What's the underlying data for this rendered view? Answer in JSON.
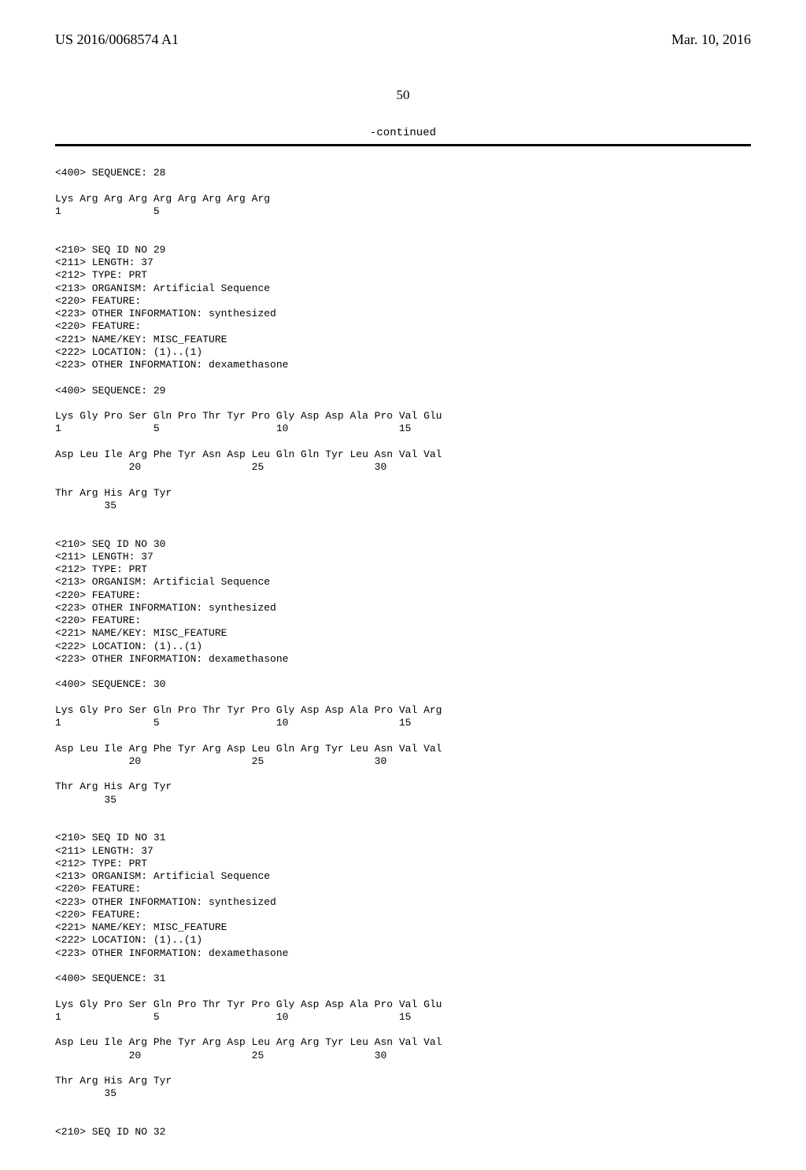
{
  "header": {
    "left": "US 2016/0068574 A1",
    "right": "Mar. 10, 2016"
  },
  "page_number": "50",
  "continued": "-continued",
  "sequences": {
    "s28": {
      "seq_line": "<400> SEQUENCE: 28",
      "aa1": "Lys Arg Arg Arg Arg Arg Arg Arg Arg",
      "num1": "1               5"
    },
    "s29": {
      "h1": "<210> SEQ ID NO 29",
      "h2": "<211> LENGTH: 37",
      "h3": "<212> TYPE: PRT",
      "h4": "<213> ORGANISM: Artificial Sequence",
      "h5": "<220> FEATURE:",
      "h6": "<223> OTHER INFORMATION: synthesized",
      "h7": "<220> FEATURE:",
      "h8": "<221> NAME/KEY: MISC_FEATURE",
      "h9": "<222> LOCATION: (1)..(1)",
      "h10": "<223> OTHER INFORMATION: dexamethasone",
      "seq_line": "<400> SEQUENCE: 29",
      "aa1": "Lys Gly Pro Ser Gln Pro Thr Tyr Pro Gly Asp Asp Ala Pro Val Glu",
      "num1": "1               5                   10                  15",
      "aa2": "Asp Leu Ile Arg Phe Tyr Asn Asp Leu Gln Gln Tyr Leu Asn Val Val",
      "num2": "            20                  25                  30",
      "aa3": "Thr Arg His Arg Tyr",
      "num3": "        35"
    },
    "s30": {
      "h1": "<210> SEQ ID NO 30",
      "h2": "<211> LENGTH: 37",
      "h3": "<212> TYPE: PRT",
      "h4": "<213> ORGANISM: Artificial Sequence",
      "h5": "<220> FEATURE:",
      "h6": "<223> OTHER INFORMATION: synthesized",
      "h7": "<220> FEATURE:",
      "h8": "<221> NAME/KEY: MISC_FEATURE",
      "h9": "<222> LOCATION: (1)..(1)",
      "h10": "<223> OTHER INFORMATION: dexamethasone",
      "seq_line": "<400> SEQUENCE: 30",
      "aa1": "Lys Gly Pro Ser Gln Pro Thr Tyr Pro Gly Asp Asp Ala Pro Val Arg",
      "num1": "1               5                   10                  15",
      "aa2": "Asp Leu Ile Arg Phe Tyr Arg Asp Leu Gln Arg Tyr Leu Asn Val Val",
      "num2": "            20                  25                  30",
      "aa3": "Thr Arg His Arg Tyr",
      "num3": "        35"
    },
    "s31": {
      "h1": "<210> SEQ ID NO 31",
      "h2": "<211> LENGTH: 37",
      "h3": "<212> TYPE: PRT",
      "h4": "<213> ORGANISM: Artificial Sequence",
      "h5": "<220> FEATURE:",
      "h6": "<223> OTHER INFORMATION: synthesized",
      "h7": "<220> FEATURE:",
      "h8": "<221> NAME/KEY: MISC_FEATURE",
      "h9": "<222> LOCATION: (1)..(1)",
      "h10": "<223> OTHER INFORMATION: dexamethasone",
      "seq_line": "<400> SEQUENCE: 31",
      "aa1": "Lys Gly Pro Ser Gln Pro Thr Tyr Pro Gly Asp Asp Ala Pro Val Glu",
      "num1": "1               5                   10                  15",
      "aa2": "Asp Leu Ile Arg Phe Tyr Arg Asp Leu Arg Arg Tyr Leu Asn Val Val",
      "num2": "            20                  25                  30",
      "aa3": "Thr Arg His Arg Tyr",
      "num3": "        35"
    },
    "s32": {
      "h1": "<210> SEQ ID NO 32"
    }
  }
}
